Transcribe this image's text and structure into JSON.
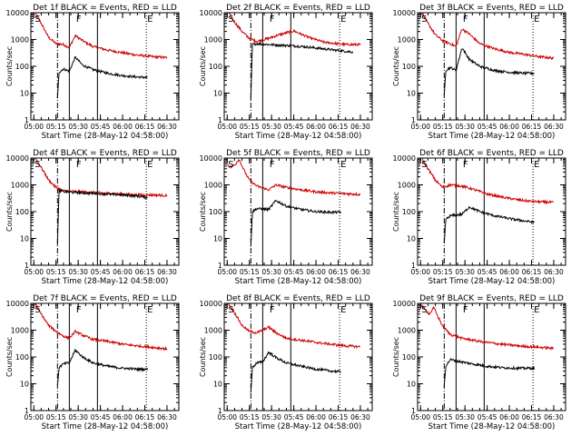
{
  "figure": {
    "xlabel": "Start Time (28-May-12 04:58:00)",
    "ylabel": "Counts/sec",
    "x_tick_labels": [
      "05:00",
      "05:15",
      "05:30",
      "05:45",
      "06:00",
      "06:15",
      "06:30"
    ],
    "y_tick_labels": [
      "1",
      "10",
      "100",
      "1000",
      "10000"
    ]
  },
  "chart_data": [
    {
      "type": "line",
      "title": "Det 1f BLACK = Events, RED = LLD",
      "ylog": true,
      "ylim": [
        1,
        10000
      ],
      "markers": {
        "S": "05:00",
        "F": "05:28",
        "E": "06:16"
      },
      "vlines": {
        "dashdot": "05:16",
        "solid": [
          "05:24",
          "05:43"
        ],
        "dotted": "06:16"
      },
      "series": [
        {
          "color": "#cc0000",
          "x": [
            "05:00",
            "05:05",
            "05:10",
            "05:15",
            "05:20",
            "05:24",
            "05:28",
            "05:33",
            "05:40",
            "05:50",
            "06:00",
            "06:10",
            "06:20",
            "06:30"
          ],
          "values": [
            12000,
            4000,
            1200,
            700,
            650,
            500,
            1400,
            900,
            550,
            400,
            320,
            260,
            230,
            210
          ]
        },
        {
          "color": "#000000",
          "x": [
            "05:16",
            "05:17",
            "05:20",
            "05:24",
            "05:28",
            "05:33",
            "05:40",
            "05:50",
            "06:00",
            "06:10",
            "06:17"
          ],
          "values": [
            6,
            60,
            80,
            65,
            220,
            110,
            75,
            55,
            45,
            40,
            38
          ]
        }
      ]
    },
    {
      "type": "line",
      "title": "Det 2f BLACK = Events, RED = LLD",
      "ylog": true,
      "ylim": [
        1,
        10000
      ],
      "markers": {
        "S": "05:00",
        "F": "05:28",
        "E": "06:16"
      },
      "vlines": {
        "dashdot": "05:16",
        "solid": [
          "05:24",
          "05:43"
        ],
        "dotted": "06:16"
      },
      "series": [
        {
          "color": "#cc0000",
          "x": [
            "05:00",
            "05:05",
            "05:10",
            "05:15",
            "05:20",
            "05:28",
            "05:35",
            "05:45",
            "05:55",
            "06:05",
            "06:20",
            "06:30"
          ],
          "values": [
            12000,
            4500,
            2000,
            1100,
            850,
            1100,
            1500,
            2100,
            1200,
            800,
            650,
            650
          ]
        },
        {
          "color": "#000000",
          "x": [
            "05:16",
            "05:17",
            "05:20",
            "05:28",
            "05:35",
            "05:45",
            "05:55",
            "06:05",
            "06:17",
            "06:25"
          ],
          "values": [
            5,
            650,
            700,
            650,
            620,
            580,
            520,
            450,
            380,
            340
          ]
        }
      ]
    },
    {
      "type": "line",
      "title": "Det 3f BLACK = Events, RED = LLD",
      "ylog": true,
      "ylim": [
        1,
        10000
      ],
      "markers": {
        "S": "05:00",
        "F": "05:28",
        "E": "06:16"
      },
      "vlines": {
        "dashdot": "05:16",
        "solid": [
          "05:24",
          "05:43"
        ],
        "dotted": "06:16"
      },
      "series": [
        {
          "color": "#cc0000",
          "x": [
            "05:00",
            "05:05",
            "05:10",
            "05:15",
            "05:20",
            "05:24",
            "05:28",
            "05:33",
            "05:40",
            "05:50",
            "06:00",
            "06:10",
            "06:20",
            "06:30"
          ],
          "values": [
            12000,
            4000,
            1500,
            900,
            700,
            550,
            2500,
            1600,
            700,
            450,
            330,
            280,
            230,
            200
          ]
        },
        {
          "color": "#000000",
          "x": [
            "05:16",
            "05:17",
            "05:20",
            "05:24",
            "05:28",
            "05:33",
            "05:40",
            "05:50",
            "06:00",
            "06:10",
            "06:17"
          ],
          "values": [
            8,
            70,
            90,
            70,
            500,
            180,
            100,
            70,
            60,
            55,
            55
          ]
        }
      ]
    },
    {
      "type": "line",
      "title": "Det 4f BLACK = Events, RED = LLD",
      "ylog": true,
      "ylim": [
        1,
        10000
      ],
      "markers": {
        "S": "05:00",
        "F": "05:28",
        "E": "06:16"
      },
      "vlines": {
        "dashdot": "05:16",
        "solid": [
          "05:24",
          "05:43"
        ],
        "dotted": "06:16"
      },
      "series": [
        {
          "color": "#cc0000",
          "x": [
            "05:00",
            "05:05",
            "05:10",
            "05:15",
            "05:20",
            "05:28",
            "05:40",
            "05:50",
            "06:00",
            "06:10",
            "06:20",
            "06:30"
          ],
          "values": [
            12000,
            4500,
            1500,
            800,
            600,
            560,
            520,
            480,
            450,
            420,
            420,
            400
          ]
        },
        {
          "color": "#000000",
          "x": [
            "05:16",
            "05:17",
            "05:20",
            "05:28",
            "05:40",
            "05:50",
            "06:00",
            "06:10",
            "06:17"
          ],
          "values": [
            6,
            600,
            560,
            520,
            480,
            450,
            420,
            380,
            330
          ]
        }
      ]
    },
    {
      "type": "line",
      "title": "Det 5f BLACK = Events, RED = LLD",
      "ylog": true,
      "ylim": [
        1,
        10000
      ],
      "markers": {
        "S": "05:00",
        "F": "05:28",
        "E": "06:16"
      },
      "vlines": {
        "dashdot": "05:16",
        "solid": [
          "05:24",
          "05:43"
        ],
        "dotted": "06:16"
      },
      "series": [
        {
          "color": "#cc0000",
          "x": [
            "05:00",
            "05:02",
            "05:05",
            "05:08",
            "05:12",
            "05:15",
            "05:20",
            "05:28",
            "05:33",
            "05:40",
            "05:50",
            "06:00",
            "06:10",
            "06:20",
            "06:30"
          ],
          "values": [
            6000,
            4500,
            5500,
            9000,
            3000,
            1500,
            900,
            650,
            1000,
            800,
            650,
            550,
            500,
            470,
            440
          ]
        },
        {
          "color": "#000000",
          "x": [
            "05:16",
            "05:17",
            "05:20",
            "05:28",
            "05:33",
            "05:40",
            "05:50",
            "06:00",
            "06:10",
            "06:17"
          ],
          "values": [
            5,
            100,
            130,
            120,
            260,
            160,
            120,
            100,
            95,
            95
          ]
        }
      ]
    },
    {
      "type": "line",
      "title": "Det 6f BLACK = Events, RED = LLD",
      "ylog": true,
      "ylim": [
        1,
        10000
      ],
      "markers": {
        "S": "05:00",
        "F": "05:28",
        "E": "06:16"
      },
      "vlines": {
        "dashdot": "05:16",
        "solid": [
          "05:24",
          "05:43"
        ],
        "dotted": "06:16"
      },
      "series": [
        {
          "color": "#cc0000",
          "x": [
            "05:00",
            "05:05",
            "05:10",
            "05:15",
            "05:20",
            "05:28",
            "05:35",
            "05:45",
            "05:55",
            "06:05",
            "06:15",
            "06:30"
          ],
          "values": [
            12000,
            4000,
            1500,
            800,
            1000,
            900,
            700,
            450,
            350,
            280,
            240,
            220
          ]
        },
        {
          "color": "#000000",
          "x": [
            "05:16",
            "05:17",
            "05:20",
            "05:28",
            "05:33",
            "05:40",
            "05:50",
            "06:00",
            "06:10",
            "06:17"
          ],
          "values": [
            6,
            50,
            70,
            80,
            150,
            100,
            70,
            55,
            45,
            40
          ]
        }
      ]
    },
    {
      "type": "line",
      "title": "Det 7f BLACK = Events, RED = LLD",
      "ylog": true,
      "ylim": [
        1,
        10000
      ],
      "markers": {
        "S": "05:00",
        "F": "05:28",
        "E": "06:16"
      },
      "vlines": {
        "dashdot": "05:16",
        "solid": [
          "05:24",
          "05:43"
        ],
        "dotted": "06:16"
      },
      "series": [
        {
          "color": "#cc0000",
          "x": [
            "05:00",
            "05:05",
            "05:10",
            "05:15",
            "05:20",
            "05:24",
            "05:28",
            "05:33",
            "05:40",
            "05:50",
            "06:00",
            "06:10",
            "06:20",
            "06:30"
          ],
          "values": [
            12000,
            4000,
            1500,
            900,
            600,
            500,
            900,
            650,
            450,
            380,
            300,
            260,
            230,
            200
          ]
        },
        {
          "color": "#000000",
          "x": [
            "05:16",
            "05:17",
            "05:20",
            "05:24",
            "05:28",
            "05:33",
            "05:40",
            "05:50",
            "06:00",
            "06:10",
            "06:17"
          ],
          "values": [
            8,
            40,
            55,
            60,
            180,
            100,
            60,
            45,
            38,
            35,
            35
          ]
        }
      ]
    },
    {
      "type": "line",
      "title": "Det 8f BLACK = Events, RED = LLD",
      "ylog": true,
      "ylim": [
        1,
        10000
      ],
      "markers": {
        "S": "05:00",
        "F": "05:28",
        "E": "06:16"
      },
      "vlines": {
        "dashdot": "05:16",
        "solid": [
          "05:24",
          "05:43"
        ],
        "dotted": "06:16"
      },
      "series": [
        {
          "color": "#cc0000",
          "x": [
            "05:00",
            "05:05",
            "05:10",
            "05:15",
            "05:20",
            "05:24",
            "05:28",
            "05:33",
            "05:40",
            "05:50",
            "06:00",
            "06:10",
            "06:20",
            "06:30"
          ],
          "values": [
            12000,
            4500,
            1500,
            900,
            800,
            1000,
            1300,
            800,
            500,
            420,
            350,
            300,
            260,
            240
          ]
        },
        {
          "color": "#000000",
          "x": [
            "05:16",
            "05:17",
            "05:20",
            "05:24",
            "05:28",
            "05:33",
            "05:40",
            "05:50",
            "06:00",
            "06:10",
            "06:17"
          ],
          "values": [
            5,
            40,
            60,
            65,
            150,
            95,
            60,
            45,
            35,
            30,
            28
          ]
        }
      ]
    },
    {
      "type": "line",
      "title": "Det 9f BLACK = Events, RED = LLD",
      "ylog": true,
      "ylim": [
        1,
        10000
      ],
      "markers": {
        "S": "05:00",
        "F": "05:28",
        "E": "06:16"
      },
      "vlines": {
        "dashdot": "05:16",
        "solid": [
          "05:24",
          "05:43"
        ],
        "dotted": "06:16"
      },
      "series": [
        {
          "color": "#cc0000",
          "x": [
            "05:00",
            "05:03",
            "05:06",
            "05:09",
            "05:12",
            "05:15",
            "05:20",
            "05:28",
            "05:40",
            "05:50",
            "06:00",
            "06:10",
            "06:20",
            "06:30"
          ],
          "values": [
            9000,
            6000,
            4000,
            7000,
            3000,
            1400,
            700,
            500,
            380,
            320,
            280,
            250,
            230,
            210
          ]
        },
        {
          "color": "#000000",
          "x": [
            "05:16",
            "05:17",
            "05:20",
            "05:28",
            "05:35",
            "05:45",
            "05:55",
            "06:05",
            "06:17"
          ],
          "values": [
            8,
            45,
            80,
            65,
            55,
            45,
            40,
            38,
            38
          ]
        }
      ]
    }
  ]
}
